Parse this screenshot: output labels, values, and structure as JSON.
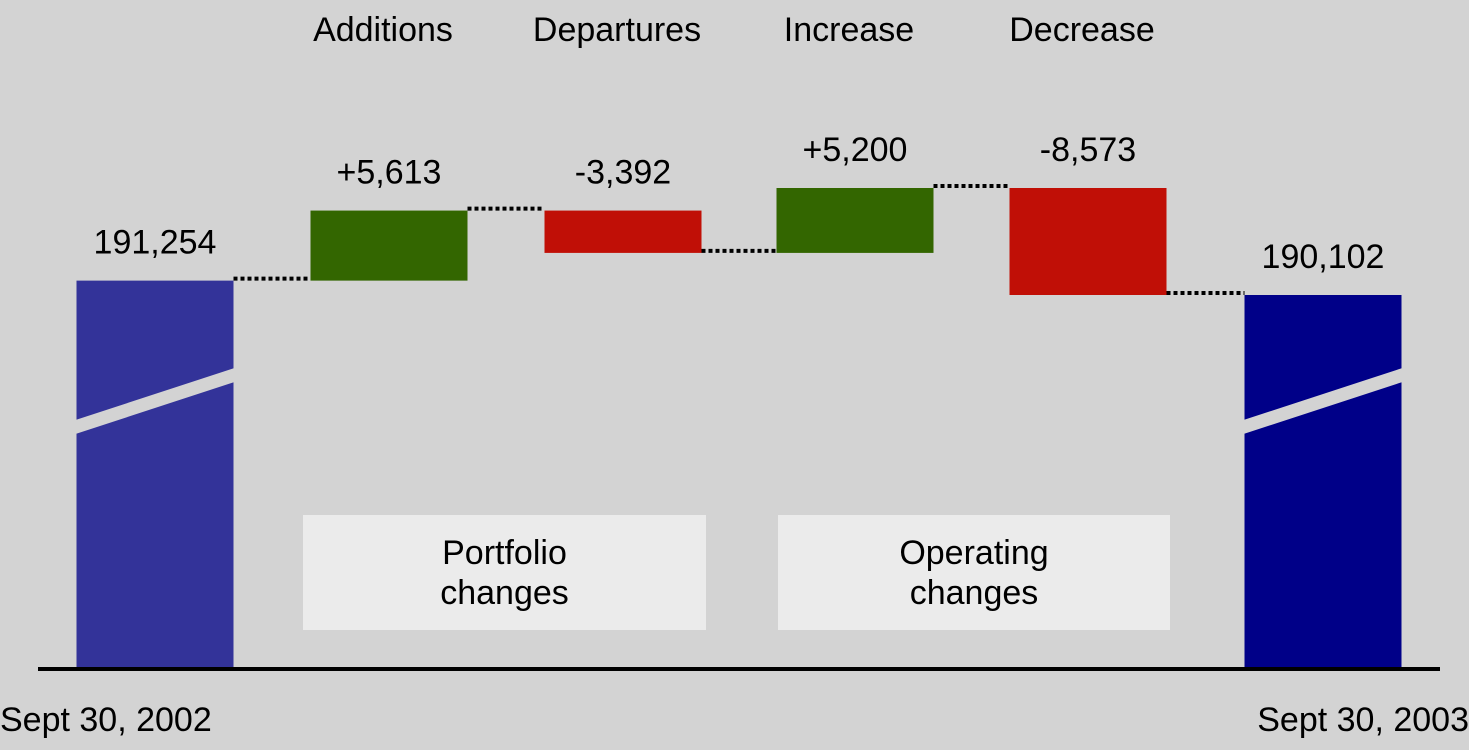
{
  "chart_data": {
    "type": "waterfall",
    "categories": [
      "Sept 30, 2002",
      "Additions",
      "Departures",
      "Increase",
      "Decrease",
      "Sept 30, 2003"
    ],
    "values": [
      191254,
      5613,
      -3392,
      5200,
      -8573,
      190102
    ],
    "value_labels": [
      "191,254",
      "+5,613",
      "-3,392",
      "+5,200",
      "-8,573",
      "190,102"
    ],
    "measures": [
      "total",
      "relative",
      "relative",
      "relative",
      "relative",
      "total"
    ],
    "colors": [
      "#333399",
      "#336600",
      "#c00f06",
      "#336600",
      "#c00f06",
      "#000088"
    ],
    "axis_break": true,
    "annotations": [
      {
        "text": "Portfolio changes"
      },
      {
        "text": "Operating changes"
      }
    ]
  }
}
